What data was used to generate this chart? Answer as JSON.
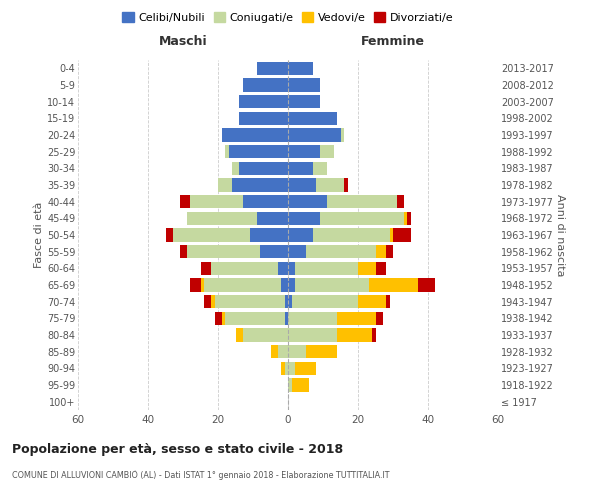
{
  "age_groups": [
    "100+",
    "95-99",
    "90-94",
    "85-89",
    "80-84",
    "75-79",
    "70-74",
    "65-69",
    "60-64",
    "55-59",
    "50-54",
    "45-49",
    "40-44",
    "35-39",
    "30-34",
    "25-29",
    "20-24",
    "15-19",
    "10-14",
    "5-9",
    "0-4"
  ],
  "birth_years": [
    "≤ 1917",
    "1918-1922",
    "1923-1927",
    "1928-1932",
    "1933-1937",
    "1938-1942",
    "1943-1947",
    "1948-1952",
    "1953-1957",
    "1958-1962",
    "1963-1967",
    "1968-1972",
    "1973-1977",
    "1978-1982",
    "1983-1987",
    "1988-1992",
    "1993-1997",
    "1998-2002",
    "2003-2007",
    "2008-2012",
    "2013-2017"
  ],
  "maschi": {
    "celibi": [
      0,
      0,
      0,
      0,
      0,
      1,
      1,
      2,
      3,
      8,
      11,
      9,
      13,
      16,
      14,
      17,
      19,
      14,
      14,
      13,
      9
    ],
    "coniugati": [
      0,
      0,
      1,
      3,
      13,
      17,
      20,
      22,
      19,
      21,
      22,
      20,
      15,
      4,
      2,
      1,
      0,
      0,
      0,
      0,
      0
    ],
    "vedovi": [
      0,
      0,
      1,
      2,
      2,
      1,
      1,
      1,
      0,
      0,
      0,
      0,
      0,
      0,
      0,
      0,
      0,
      0,
      0,
      0,
      0
    ],
    "divorziati": [
      0,
      0,
      0,
      0,
      0,
      2,
      2,
      3,
      3,
      2,
      2,
      0,
      3,
      0,
      0,
      0,
      0,
      0,
      0,
      0,
      0
    ]
  },
  "femmine": {
    "nubili": [
      0,
      0,
      0,
      0,
      0,
      0,
      1,
      2,
      2,
      5,
      7,
      9,
      11,
      8,
      7,
      9,
      15,
      14,
      9,
      9,
      7
    ],
    "coniugate": [
      0,
      1,
      2,
      5,
      14,
      14,
      19,
      21,
      18,
      20,
      22,
      24,
      20,
      8,
      4,
      4,
      1,
      0,
      0,
      0,
      0
    ],
    "vedove": [
      0,
      5,
      6,
      9,
      10,
      11,
      8,
      14,
      5,
      3,
      1,
      1,
      0,
      0,
      0,
      0,
      0,
      0,
      0,
      0,
      0
    ],
    "divorziate": [
      0,
      0,
      0,
      0,
      1,
      2,
      1,
      5,
      3,
      2,
      5,
      1,
      2,
      1,
      0,
      0,
      0,
      0,
      0,
      0,
      0
    ]
  },
  "colors": {
    "celibi_nubili": "#4472c4",
    "coniugati": "#c5d9a0",
    "vedovi": "#ffc000",
    "divorziati": "#c00000"
  },
  "xlim": 60,
  "title": "Popolazione per età, sesso e stato civile - 2018",
  "subtitle": "COMUNE DI ALLUVIONI CAMBIÒ (AL) - Dati ISTAT 1° gennaio 2018 - Elaborazione TUTTITALIA.IT",
  "ylabel_left": "Fasce di età",
  "ylabel_right": "Anni di nascita",
  "xlabel_maschi": "Maschi",
  "xlabel_femmine": "Femmine",
  "bar_height": 0.8,
  "background_color": "#ffffff",
  "grid_color": "#cccccc",
  "legend_labels": [
    "Celibi/Nubili",
    "Coniugati/e",
    "Vedovi/e",
    "Divorziati/e"
  ]
}
